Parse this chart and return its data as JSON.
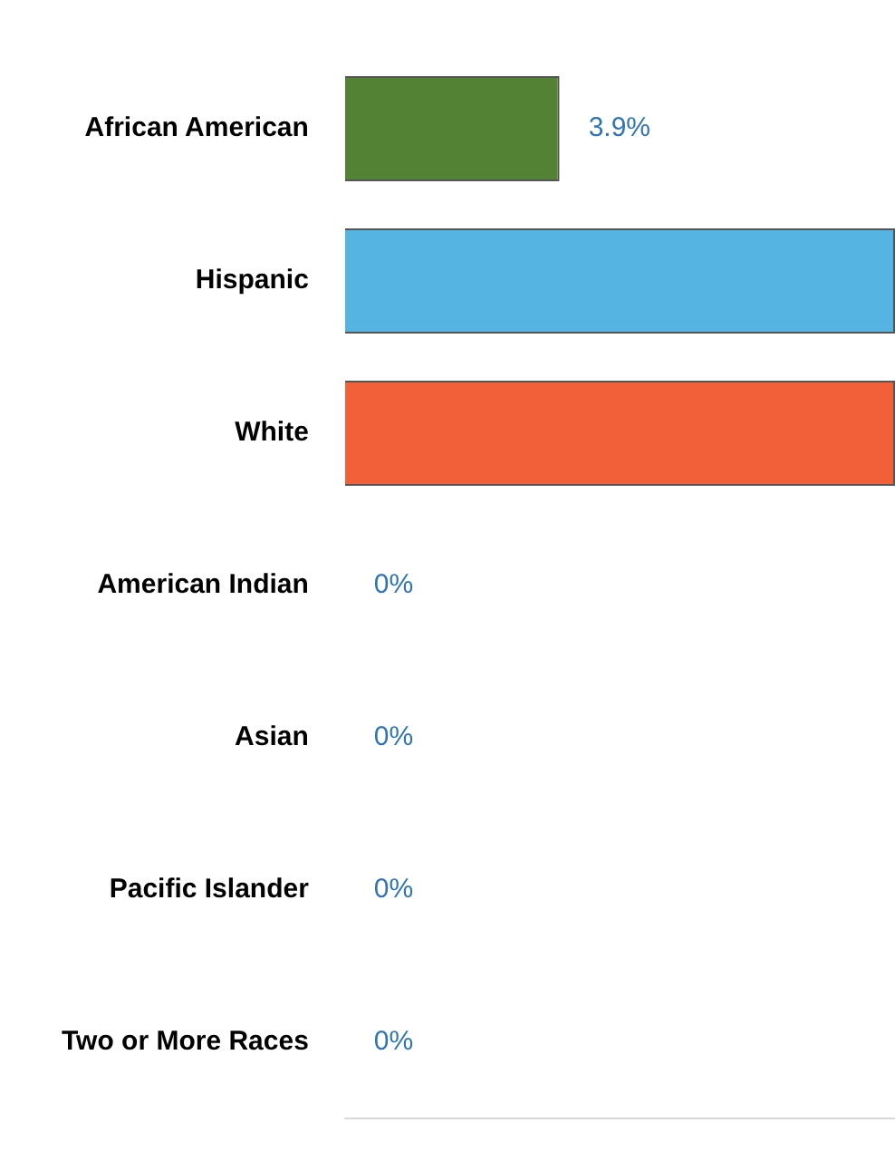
{
  "chart_data": {
    "type": "bar",
    "orientation": "horizontal",
    "categories": [
      "African American",
      "Hispanic",
      "White",
      "American Indian",
      "Asian",
      "Pacific Islander",
      "Two or More Races"
    ],
    "values": [
      3.9,
      10,
      10,
      0,
      0,
      0,
      0
    ],
    "colors": [
      "#548235",
      "#56b4e3",
      "#f2603a",
      "#548235",
      "#548235",
      "#548235",
      "#548235"
    ],
    "value_labels": [
      "3.9%",
      null,
      null,
      "0%",
      "0%",
      "0%",
      "0%"
    ],
    "xlim": [
      0,
      10
    ],
    "grid": false,
    "legend": false,
    "tick_labels": "y"
  }
}
